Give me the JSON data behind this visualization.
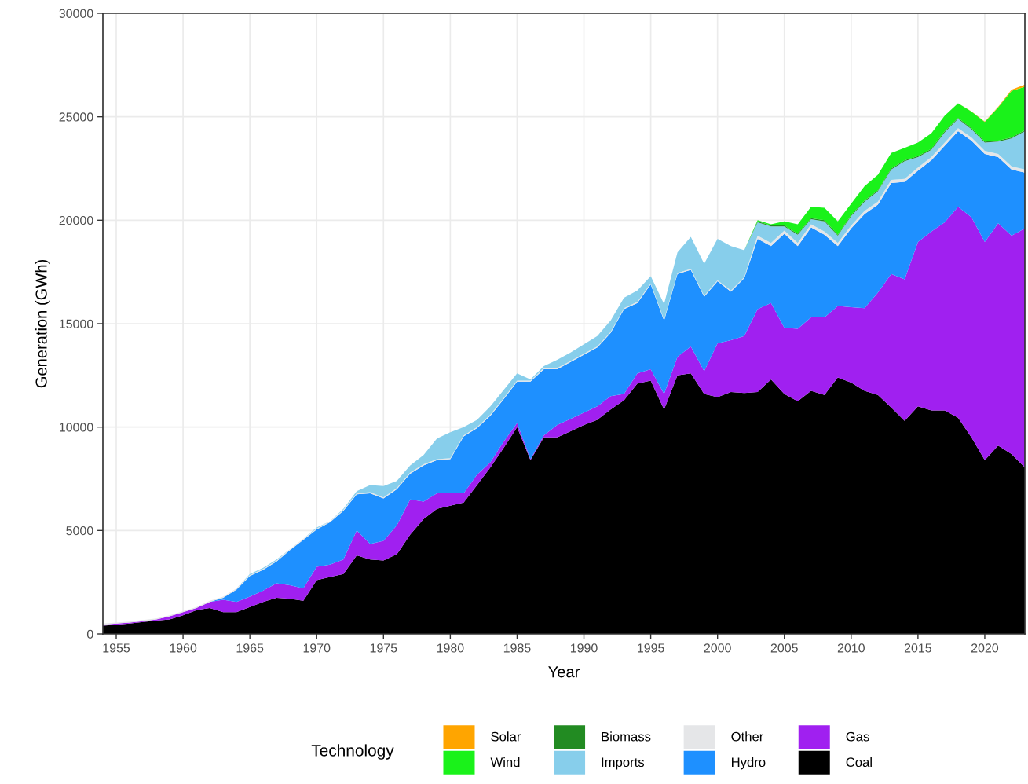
{
  "chart_data": {
    "type": "area",
    "stacked": true,
    "xlabel": "Year",
    "ylabel": "Generation (GWh)",
    "legend_title": "Technology",
    "legend": "bottom",
    "grid": true,
    "x": [
      1954,
      1955,
      1956,
      1957,
      1958,
      1959,
      1960,
      1961,
      1962,
      1963,
      1964,
      1965,
      1966,
      1967,
      1968,
      1969,
      1970,
      1971,
      1972,
      1973,
      1974,
      1975,
      1976,
      1977,
      1978,
      1979,
      1980,
      1981,
      1982,
      1983,
      1984,
      1985,
      1986,
      1987,
      1988,
      1989,
      1990,
      1991,
      1992,
      1993,
      1994,
      1995,
      1996,
      1997,
      1998,
      1999,
      2000,
      2001,
      2002,
      2003,
      2004,
      2005,
      2006,
      2007,
      2008,
      2009,
      2010,
      2011,
      2012,
      2013,
      2014,
      2015,
      2016,
      2017,
      2018,
      2019,
      2020,
      2021,
      2022,
      2023
    ],
    "xlim": [
      1954,
      2023
    ],
    "xticks": [
      1955,
      1960,
      1965,
      1970,
      1975,
      1980,
      1985,
      1990,
      1995,
      2000,
      2005,
      2010,
      2015,
      2020
    ],
    "ylim": [
      0,
      30000
    ],
    "yticks": [
      0,
      5000,
      10000,
      15000,
      20000,
      25000,
      30000
    ],
    "series": [
      {
        "name": "Coal",
        "color": "#000000",
        "values": [
          400,
          450,
          500,
          580,
          650,
          700,
          900,
          1150,
          1250,
          1050,
          1050,
          1300,
          1550,
          1750,
          1700,
          1600,
          2600,
          2750,
          2900,
          3800,
          3600,
          3550,
          3850,
          4800,
          5550,
          6050,
          6200,
          6350,
          7200,
          8050,
          9000,
          10000,
          8400,
          9500,
          9500,
          9800,
          10100,
          10350,
          10850,
          11300,
          12100,
          12250,
          10850,
          12500,
          12600,
          11600,
          11450,
          11700,
          11650,
          11700,
          12300,
          11600,
          11250,
          11750,
          11550,
          12400,
          12150,
          11750,
          11550,
          10950,
          10300,
          11000,
          10800,
          10800,
          10450,
          9500,
          8400,
          9100,
          8700,
          8050
        ]
      },
      {
        "name": "Gas",
        "color": "#a020f0",
        "values": [
          50,
          50,
          50,
          40,
          50,
          150,
          150,
          100,
          300,
          600,
          500,
          500,
          550,
          700,
          650,
          600,
          650,
          600,
          700,
          1200,
          750,
          950,
          1400,
          1700,
          850,
          750,
          600,
          450,
          500,
          250,
          300,
          200,
          50,
          100,
          600,
          600,
          600,
          650,
          650,
          300,
          500,
          550,
          750,
          900,
          1300,
          1100,
          2600,
          2500,
          2750,
          4000,
          3700,
          3200,
          3500,
          3550,
          3750,
          3450,
          3650,
          4000,
          4950,
          6450,
          6850,
          7950,
          8650,
          9100,
          10200,
          10650,
          10550,
          10750,
          10550,
          11550
        ]
      },
      {
        "name": "Hydro",
        "color": "#1e90ff",
        "values": [
          0,
          0,
          0,
          0,
          0,
          0,
          0,
          0,
          0,
          100,
          600,
          1000,
          1000,
          1050,
          1700,
          2350,
          1800,
          2050,
          2350,
          1750,
          2450,
          2050,
          1750,
          1250,
          1750,
          1600,
          1650,
          2750,
          2250,
          2250,
          2050,
          2000,
          3750,
          3200,
          2700,
          2750,
          2800,
          2850,
          3050,
          4100,
          3400,
          4100,
          3550,
          4000,
          3700,
          3600,
          3000,
          2350,
          2800,
          3400,
          2750,
          4550,
          4000,
          4350,
          4000,
          2900,
          3800,
          4550,
          4250,
          4400,
          4700,
          3450,
          3450,
          3700,
          3650,
          3700,
          4250,
          3200,
          3200,
          2700
        ]
      },
      {
        "name": "Other",
        "color": "#e5e6e8",
        "values": [
          50,
          50,
          50,
          50,
          50,
          50,
          50,
          50,
          50,
          50,
          50,
          50,
          50,
          50,
          50,
          50,
          50,
          50,
          50,
          50,
          50,
          50,
          50,
          50,
          50,
          50,
          50,
          50,
          50,
          50,
          50,
          50,
          50,
          50,
          50,
          50,
          50,
          50,
          50,
          50,
          50,
          50,
          50,
          50,
          50,
          50,
          50,
          50,
          50,
          150,
          150,
          150,
          150,
          150,
          150,
          150,
          150,
          150,
          150,
          150,
          150,
          150,
          150,
          150,
          150,
          150,
          150,
          150,
          150,
          150
        ]
      },
      {
        "name": "Imports",
        "color": "#87ceeb",
        "values": [
          0,
          0,
          0,
          0,
          0,
          0,
          0,
          0,
          0,
          0,
          0,
          50,
          50,
          50,
          0,
          0,
          50,
          0,
          50,
          100,
          350,
          550,
          350,
          350,
          450,
          1000,
          1250,
          400,
          350,
          400,
          400,
          350,
          50,
          100,
          400,
          400,
          450,
          500,
          550,
          500,
          550,
          350,
          750,
          1000,
          1550,
          1550,
          2000,
          2150,
          1300,
          650,
          800,
          200,
          400,
          250,
          500,
          350,
          450,
          450,
          500,
          500,
          850,
          500,
          350,
          500,
          450,
          400,
          400,
          600,
          1350,
          1850
        ]
      },
      {
        "name": "Biomass",
        "color": "#228b22",
        "values": [
          0,
          0,
          0,
          0,
          0,
          0,
          0,
          0,
          0,
          0,
          0,
          0,
          0,
          0,
          0,
          0,
          0,
          0,
          0,
          0,
          0,
          0,
          0,
          0,
          0,
          0,
          0,
          0,
          0,
          0,
          0,
          0,
          0,
          0,
          0,
          0,
          0,
          0,
          0,
          0,
          0,
          0,
          0,
          0,
          0,
          0,
          0,
          0,
          0,
          50,
          50,
          50,
          50,
          50,
          50,
          50,
          50,
          50,
          50,
          50,
          50,
          50,
          50,
          50,
          50,
          50,
          50,
          50,
          50,
          50
        ]
      },
      {
        "name": "Wind",
        "color": "#1af21a",
        "values": [
          0,
          0,
          0,
          0,
          0,
          0,
          0,
          0,
          0,
          0,
          0,
          0,
          0,
          0,
          0,
          0,
          0,
          0,
          0,
          0,
          0,
          0,
          0,
          0,
          0,
          0,
          0,
          0,
          0,
          0,
          0,
          0,
          0,
          0,
          0,
          0,
          0,
          0,
          0,
          0,
          0,
          0,
          0,
          0,
          0,
          0,
          0,
          0,
          0,
          50,
          50,
          200,
          450,
          550,
          600,
          650,
          550,
          700,
          750,
          750,
          600,
          650,
          750,
          750,
          700,
          800,
          950,
          1600,
          2250,
          2100
        ]
      },
      {
        "name": "Solar",
        "color": "#ffa500",
        "values": [
          0,
          0,
          0,
          0,
          0,
          0,
          0,
          0,
          0,
          0,
          0,
          0,
          0,
          0,
          0,
          0,
          0,
          0,
          0,
          0,
          0,
          0,
          0,
          0,
          0,
          0,
          0,
          0,
          0,
          0,
          0,
          0,
          0,
          0,
          0,
          0,
          0,
          0,
          0,
          0,
          0,
          0,
          0,
          0,
          0,
          0,
          0,
          0,
          0,
          0,
          0,
          0,
          0,
          0,
          0,
          0,
          0,
          0,
          0,
          0,
          0,
          0,
          0,
          0,
          0,
          10,
          20,
          30,
          60,
          100
        ]
      }
    ]
  }
}
